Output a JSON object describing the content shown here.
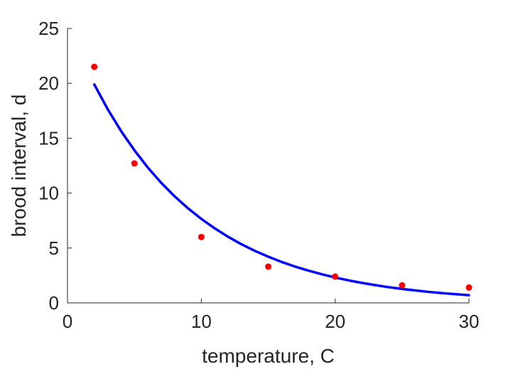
{
  "chart_data": {
    "type": "scatter",
    "xlabel": "temperature, C",
    "ylabel": "brood interval, d",
    "xlim": [
      0,
      30
    ],
    "ylim": [
      0,
      25
    ],
    "xticks": [
      "0",
      "10",
      "20",
      "30"
    ],
    "yticks": [
      "0",
      "5",
      "10",
      "15",
      "20",
      "25"
    ],
    "grid": false,
    "legend": "none",
    "series": [
      {
        "kind": "points",
        "color": "#ff0000",
        "x": [
          2,
          5,
          10,
          15,
          20,
          25,
          30
        ],
        "y": [
          21.5,
          12.7,
          6.0,
          3.3,
          2.4,
          1.6,
          1.4
        ]
      },
      {
        "kind": "fit-line",
        "color": "#0000ff",
        "x": [
          2,
          3,
          4,
          5,
          6,
          7,
          8,
          9,
          10,
          11,
          12,
          13,
          14,
          15,
          16,
          17,
          18,
          19,
          20,
          21,
          22,
          23,
          24,
          25,
          26,
          27,
          28,
          29,
          30
        ],
        "y": [
          19.9,
          17.65,
          15.66,
          13.9,
          12.33,
          10.94,
          9.71,
          8.62,
          7.65,
          6.79,
          6.02,
          5.34,
          4.74,
          4.21,
          3.73,
          3.31,
          2.94,
          2.61,
          2.31,
          2.05,
          1.82,
          1.62,
          1.43,
          1.27,
          1.13,
          1.0,
          0.89,
          0.79,
          0.7
        ]
      }
    ]
  }
}
